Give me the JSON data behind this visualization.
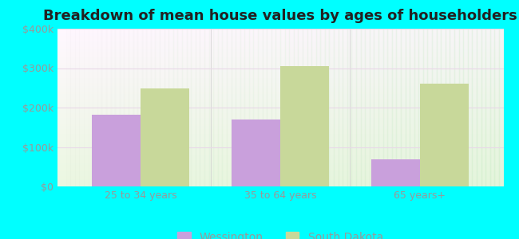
{
  "title": "Breakdown of mean house values by ages of householders",
  "categories": [
    "25 to 34 years",
    "35 to 64 years",
    "65 years+"
  ],
  "wessington_values": [
    182000,
    170000,
    68000
  ],
  "south_dakota_values": [
    248000,
    305000,
    260000
  ],
  "wessington_color": "#c9a0dc",
  "south_dakota_color": "#c8d89a",
  "ylim": [
    0,
    400000
  ],
  "yticks": [
    0,
    100000,
    200000,
    300000,
    400000
  ],
  "ytick_labels": [
    "$0",
    "$100k",
    "$200k",
    "$300k",
    "$400k"
  ],
  "background_color": "#00ffff",
  "bar_width": 0.35,
  "legend_labels": [
    "Wessington",
    "South Dakota"
  ],
  "title_fontsize": 13,
  "tick_fontsize": 9,
  "legend_fontsize": 10,
  "grid_color": "#ddeecc",
  "tick_color": "#999999"
}
